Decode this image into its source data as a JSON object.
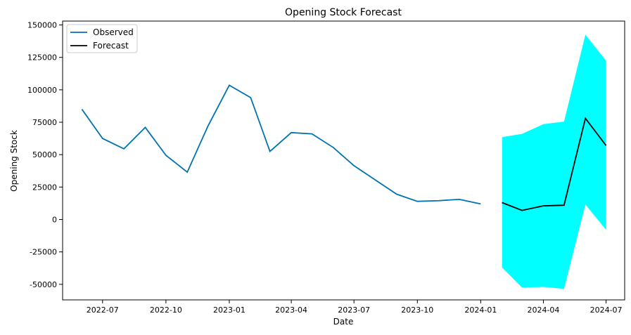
{
  "chart_data": {
    "type": "line",
    "title": "Opening Stock Forecast",
    "xlabel": "Date",
    "ylabel": "Opening Stock",
    "xlim": [
      "2022-05-04",
      "2024-07-28"
    ],
    "ylim": [
      -62000,
      153000
    ],
    "x_ticks": [
      "2022-07",
      "2022-10",
      "2023-01",
      "2023-04",
      "2023-07",
      "2023-10",
      "2024-01",
      "2024-04",
      "2024-07"
    ],
    "y_ticks": [
      -50000,
      -25000,
      0,
      25000,
      50000,
      75000,
      100000,
      125000,
      150000
    ],
    "grid": false,
    "legend": {
      "position": "top-left",
      "entries": [
        "Observed",
        "Forecast"
      ]
    },
    "colors": {
      "observed": "#0072b2",
      "forecast": "#000000",
      "confidence_band": "#00ffff"
    },
    "series": [
      {
        "name": "Observed",
        "x": [
          "2022-06-01",
          "2022-07-01",
          "2022-08-01",
          "2022-09-01",
          "2022-10-01",
          "2022-11-01",
          "2022-12-01",
          "2023-01-01",
          "2023-02-01",
          "2023-03-01",
          "2023-04-01",
          "2023-05-01",
          "2023-06-01",
          "2023-07-01",
          "2023-08-01",
          "2023-09-01",
          "2023-10-01",
          "2023-11-01",
          "2023-12-01",
          "2024-01-01"
        ],
        "values": [
          85000,
          62500,
          54500,
          71000,
          49500,
          36500,
          72000,
          103500,
          94000,
          52500,
          67000,
          66000,
          55500,
          41500,
          30500,
          19500,
          14000,
          14500,
          15500,
          12000
        ]
      },
      {
        "name": "Forecast",
        "x": [
          "2024-02-01",
          "2024-03-01",
          "2024-04-01",
          "2024-05-01",
          "2024-06-01",
          "2024-07-01"
        ],
        "values": [
          13000,
          7000,
          10500,
          11000,
          78000,
          57000
        ],
        "lower": [
          -37000,
          -52500,
          -52000,
          -53500,
          11500,
          -8000
        ],
        "upper": [
          63500,
          66000,
          73500,
          75500,
          142500,
          122500
        ]
      }
    ]
  }
}
